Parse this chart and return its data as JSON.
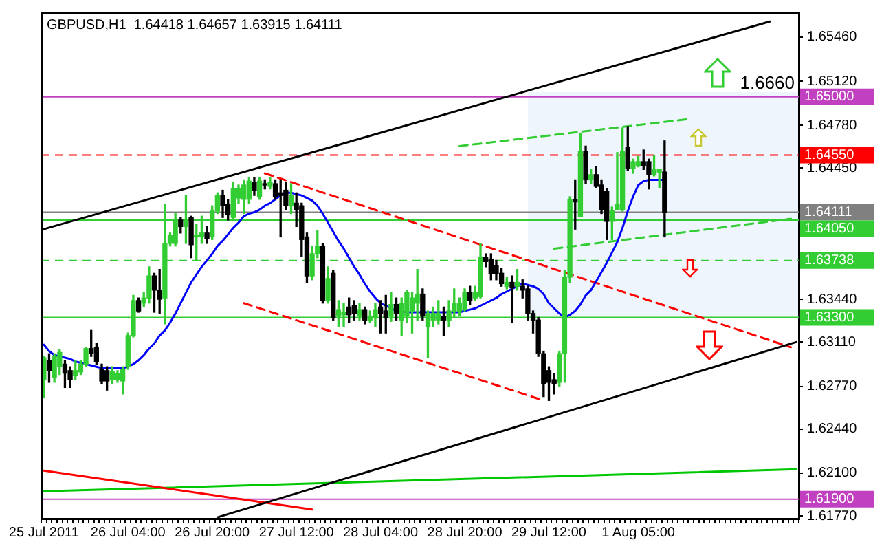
{
  "chart_data": {
    "type": "candlestick",
    "title": "GBPUSD,H1  1.64418 1.64657 1.63915 1.64111",
    "categories": [
      "25 Jul 2011",
      null,
      null,
      null,
      null,
      null,
      null,
      null,
      null,
      null,
      null,
      null,
      null,
      null,
      null,
      null,
      "26 Jul 04:00",
      null,
      null,
      null,
      null,
      null,
      null,
      null,
      null,
      null,
      null,
      null,
      null,
      null,
      null,
      null,
      "26 Jul 20:00",
      null,
      null,
      null,
      null,
      null,
      null,
      null,
      null,
      null,
      null,
      null,
      null,
      null,
      null,
      null,
      "27 Jul 12:00",
      null,
      null,
      null,
      null,
      null,
      null,
      null,
      null,
      null,
      null,
      null,
      null,
      null,
      null,
      null,
      "28 Jul 04:00",
      null,
      null,
      null,
      null,
      null,
      null,
      null,
      null,
      null,
      null,
      null,
      null,
      null,
      null,
      null,
      "28 Jul 20:00",
      null,
      null,
      null,
      null,
      null,
      null,
      null,
      null,
      null,
      null,
      null,
      null,
      null,
      null,
      null,
      "29 Jul 12:00",
      null,
      null,
      null,
      null,
      null,
      null,
      null,
      null,
      null,
      null,
      null,
      null,
      null,
      null,
      null,
      null,
      "1 Aug 05:00",
      null,
      null,
      null,
      null,
      null,
      null,
      null,
      null,
      null,
      null,
      null,
      null,
      null,
      null,
      null,
      null,
      null,
      null,
      null,
      null,
      null,
      null,
      null,
      null,
      null,
      null,
      null,
      null,
      null,
      null
    ],
    "ohlc": [
      [
        1.6282,
        1.63,
        1.6268,
        1.6299
      ],
      [
        1.6297,
        1.6302,
        1.628,
        1.6289
      ],
      [
        1.6284,
        1.6302,
        1.628,
        1.63
      ],
      [
        1.6292,
        1.6305,
        1.6286,
        1.6303
      ],
      [
        1.6294,
        1.6297,
        1.6276,
        1.6287
      ],
      [
        1.6289,
        1.6292,
        1.6276,
        1.6282
      ],
      [
        1.6285,
        1.6297,
        1.6282,
        1.6289
      ],
      [
        1.6288,
        1.6297,
        1.6286,
        1.6294
      ],
      [
        1.6294,
        1.6307,
        1.6292,
        1.6306
      ],
      [
        1.6306,
        1.632,
        1.63,
        1.6302
      ],
      [
        1.6307,
        1.631,
        1.6294,
        1.6296
      ],
      [
        1.629,
        1.6294,
        1.6279,
        1.6281
      ],
      [
        1.6289,
        1.6292,
        1.6274,
        1.6281
      ],
      [
        1.6282,
        1.6292,
        1.6279,
        1.6288
      ],
      [
        1.6282,
        1.6289,
        1.628,
        1.6287
      ],
      [
        1.6281,
        1.6292,
        1.6271,
        1.629
      ],
      [
        1.6292,
        1.6318,
        1.629,
        1.6316
      ],
      [
        1.6316,
        1.6347,
        1.6315,
        1.6343
      ],
      [
        1.6343,
        1.6345,
        1.6334,
        1.6335
      ],
      [
        1.6341,
        1.6349,
        1.6338,
        1.6345
      ],
      [
        1.6345,
        1.6369,
        1.6341,
        1.6362
      ],
      [
        1.6362,
        1.6364,
        1.6334,
        1.6351
      ],
      [
        1.6351,
        1.6367,
        1.6333,
        1.6344
      ],
      [
        1.6345,
        1.6417,
        1.6325,
        1.6387
      ],
      [
        1.6387,
        1.6395,
        1.6385,
        1.6393
      ],
      [
        1.6387,
        1.641,
        1.6385,
        1.6405
      ],
      [
        1.6405,
        1.6407,
        1.6395,
        1.64
      ],
      [
        1.64,
        1.6424,
        1.6387,
        1.6405
      ],
      [
        1.6407,
        1.6408,
        1.6376,
        1.6386
      ],
      [
        1.6392,
        1.6402,
        1.6374,
        1.6393
      ],
      [
        1.6392,
        1.6408,
        1.6387,
        1.6395
      ],
      [
        1.6395,
        1.64,
        1.6387,
        1.6391
      ],
      [
        1.6392,
        1.6416,
        1.639,
        1.6412
      ],
      [
        1.6412,
        1.6426,
        1.641,
        1.6424
      ],
      [
        1.6424,
        1.6428,
        1.6407,
        1.6416
      ],
      [
        1.6417,
        1.6421,
        1.6405,
        1.6409
      ],
      [
        1.6407,
        1.6434,
        1.6405,
        1.6429
      ],
      [
        1.6422,
        1.6432,
        1.6418,
        1.6429
      ],
      [
        1.6421,
        1.6436,
        1.641,
        1.6432
      ],
      [
        1.6421,
        1.6438,
        1.6418,
        1.6435
      ],
      [
        1.6434,
        1.6438,
        1.6424,
        1.6428
      ],
      [
        1.6423,
        1.6438,
        1.6421,
        1.6435
      ],
      [
        1.6433,
        1.6436,
        1.6429,
        1.6432
      ],
      [
        1.6431,
        1.6438,
        1.6429,
        1.6434
      ],
      [
        1.6433,
        1.6436,
        1.6421,
        1.6423
      ],
      [
        1.6426,
        1.6436,
        1.6392,
        1.6424
      ],
      [
        1.6428,
        1.6434,
        1.6413,
        1.6416
      ],
      [
        1.6416,
        1.6433,
        1.641,
        1.6424
      ],
      [
        1.6418,
        1.6426,
        1.64,
        1.6413
      ],
      [
        1.6416,
        1.6418,
        1.6377,
        1.639
      ],
      [
        1.6392,
        1.6395,
        1.6357,
        1.6362
      ],
      [
        1.6362,
        1.6385,
        1.6359,
        1.6379
      ],
      [
        1.6379,
        1.6397,
        1.6376,
        1.6385
      ],
      [
        1.6385,
        1.6387,
        1.6341,
        1.6343
      ],
      [
        1.6343,
        1.6369,
        1.6341,
        1.636
      ],
      [
        1.6364,
        1.6366,
        1.6328,
        1.633
      ],
      [
        1.6331,
        1.6343,
        1.6323,
        1.6336
      ],
      [
        1.6332,
        1.6341,
        1.6323,
        1.6334
      ],
      [
        1.6338,
        1.6345,
        1.6326,
        1.6332
      ],
      [
        1.6339,
        1.6343,
        1.6328,
        1.6333
      ],
      [
        1.6331,
        1.6341,
        1.6328,
        1.6336
      ],
      [
        1.6336,
        1.6338,
        1.6325,
        1.6328
      ],
      [
        1.6328,
        1.6335,
        1.6326,
        1.6331
      ],
      [
        1.633,
        1.6341,
        1.6323,
        1.6336
      ],
      [
        1.6338,
        1.6343,
        1.6318,
        1.6333
      ],
      [
        1.6335,
        1.6347,
        1.6318,
        1.633
      ],
      [
        1.6331,
        1.6349,
        1.6327,
        1.634
      ],
      [
        1.634,
        1.6345,
        1.6328,
        1.6333
      ],
      [
        1.6328,
        1.6345,
        1.6316,
        1.6341
      ],
      [
        1.6331,
        1.6351,
        1.6326,
        1.6349
      ],
      [
        1.6335,
        1.6349,
        1.6318,
        1.6345
      ],
      [
        1.6341,
        1.6367,
        1.6328,
        1.6348
      ],
      [
        1.6348,
        1.6352,
        1.6328,
        1.6331
      ],
      [
        1.6323,
        1.6335,
        1.6299,
        1.6333
      ],
      [
        1.6328,
        1.6338,
        1.6323,
        1.6333
      ],
      [
        1.6328,
        1.6343,
        1.6325,
        1.6333
      ],
      [
        1.6331,
        1.6338,
        1.6316,
        1.6328
      ],
      [
        1.6328,
        1.6343,
        1.6323,
        1.6335
      ],
      [
        1.6335,
        1.6352,
        1.633,
        1.6341
      ],
      [
        1.6335,
        1.6345,
        1.6331,
        1.6341
      ],
      [
        1.6336,
        1.6352,
        1.6335,
        1.6349
      ],
      [
        1.6349,
        1.6354,
        1.634,
        1.6343
      ],
      [
        1.6345,
        1.6354,
        1.6343,
        1.6349
      ],
      [
        1.6346,
        1.6387,
        1.6345,
        1.6376
      ],
      [
        1.6376,
        1.6379,
        1.6369,
        1.6373
      ],
      [
        1.6375,
        1.6379,
        1.6359,
        1.6364
      ],
      [
        1.637,
        1.6374,
        1.6359,
        1.6364
      ],
      [
        1.6364,
        1.6368,
        1.6354,
        1.6356
      ],
      [
        1.6354,
        1.6361,
        1.6352,
        1.6357
      ],
      [
        1.6357,
        1.6362,
        1.6326,
        1.6353
      ],
      [
        1.6354,
        1.6367,
        1.6351,
        1.6357
      ],
      [
        1.6354,
        1.6359,
        1.6345,
        1.6351
      ],
      [
        1.6352,
        1.6354,
        1.6328,
        1.6333
      ],
      [
        1.6333,
        1.6335,
        1.6318,
        1.6328
      ],
      [
        1.6328,
        1.633,
        1.63,
        1.6302
      ],
      [
        1.6302,
        1.6304,
        1.6269,
        1.6279
      ],
      [
        1.6289,
        1.6292,
        1.6266,
        1.628
      ],
      [
        1.6282,
        1.6287,
        1.6271,
        1.6279
      ],
      [
        1.628,
        1.6304,
        1.6277,
        1.6302
      ],
      [
        1.6302,
        1.6366,
        1.628,
        1.6361
      ],
      [
        1.6361,
        1.6423,
        1.6357,
        1.6421
      ],
      [
        1.6421,
        1.6436,
        1.6398,
        1.6419
      ],
      [
        1.6408,
        1.6472,
        1.6408,
        1.6458
      ],
      [
        1.6458,
        1.6462,
        1.6433,
        1.6436
      ],
      [
        1.6436,
        1.6444,
        1.6433,
        1.644
      ],
      [
        1.644,
        1.6446,
        1.643,
        1.6431
      ],
      [
        1.6432,
        1.6436,
        1.641,
        1.6413
      ],
      [
        1.6427,
        1.6429,
        1.639,
        1.6404
      ],
      [
        1.6404,
        1.6415,
        1.639,
        1.6412
      ],
      [
        1.6413,
        1.6457,
        1.6413,
        1.6417
      ],
      [
        1.6413,
        1.6476,
        1.6412,
        1.6458
      ],
      [
        1.6461,
        1.6477,
        1.6443,
        1.6445
      ],
      [
        1.6445,
        1.6452,
        1.6441,
        1.645
      ],
      [
        1.6447,
        1.6454,
        1.6446,
        1.645
      ],
      [
        1.645,
        1.6459,
        1.6444,
        1.6447
      ],
      [
        1.645,
        1.6452,
        1.6429,
        1.644
      ],
      [
        1.644,
        1.6455,
        1.6439,
        1.6444
      ],
      [
        1.6442,
        1.6444,
        1.643,
        1.6444
      ],
      [
        1.6442,
        1.6466,
        1.6392,
        1.6411
      ],
      null,
      null,
      null,
      null,
      null,
      null,
      null,
      null,
      null,
      null,
      null,
      null,
      null,
      null,
      null,
      null,
      null,
      null,
      null,
      null,
      null,
      null,
      null,
      null,
      null
    ],
    "colors": [
      "#32cd32",
      "#000000",
      "#32cd32",
      "#32cd32",
      "#000000",
      "#000000",
      "#32cd32",
      "#32cd32",
      "#32cd32",
      "#000000",
      "#000000",
      "#000000",
      "#000000",
      "#32cd32",
      "#32cd32",
      "#32cd32",
      "#32cd32",
      "#32cd32",
      "#000000",
      "#32cd32",
      "#32cd32",
      "#000000",
      "#000000",
      "#32cd32",
      "#32cd32",
      "#32cd32",
      "#000000",
      "#32cd32",
      "#000000",
      "#32cd32",
      "#32cd32",
      "#000000",
      "#32cd32",
      "#32cd32",
      "#000000",
      "#000000",
      "#32cd32",
      "#32cd32",
      "#32cd32",
      "#32cd32",
      "#000000",
      "#32cd32",
      "#000000",
      "#32cd32",
      "#000000",
      "#000000",
      "#000000",
      "#32cd32",
      "#000000",
      "#000000",
      "#000000",
      "#32cd32",
      "#32cd32",
      "#000000",
      "#32cd32",
      "#000000",
      "#32cd32",
      "#32cd32",
      "#000000",
      "#000000",
      "#32cd32",
      "#000000",
      "#32cd32",
      "#32cd32",
      "#000000",
      "#000000",
      "#32cd32",
      "#000000",
      "#32cd32",
      "#32cd32",
      "#32cd32",
      "#32cd32",
      "#000000",
      "#32cd32",
      "#32cd32",
      "#32cd32",
      "#000000",
      "#32cd32",
      "#32cd32",
      "#32cd32",
      "#32cd32",
      "#000000",
      "#32cd32",
      "#32cd32",
      "#000000",
      "#000000",
      "#000000",
      "#000000",
      "#32cd32",
      "#000000",
      "#32cd32",
      "#000000",
      "#000000",
      "#000000",
      "#000000",
      "#000000",
      "#000000",
      "#000000",
      "#32cd32",
      "#32cd32",
      "#32cd32",
      "#000000",
      "#32cd32",
      "#000000",
      "#32cd32",
      "#000000",
      "#000000",
      "#000000",
      "#32cd32",
      "#32cd32",
      "#32cd32",
      "#000000",
      "#32cd32",
      "#32cd32",
      "#000000",
      "#000000",
      "#32cd32",
      "#32cd32",
      "#000000",
      null,
      null,
      null,
      null,
      null,
      null,
      null,
      null,
      null,
      null,
      null,
      null,
      null,
      null,
      null,
      null,
      null,
      null,
      null,
      null,
      null,
      null,
      null,
      null,
      null
    ],
    "series": [
      {
        "type": "line",
        "color": "#0000ff",
        "values": [
          1.6309,
          1.6304,
          1.6301,
          1.63,
          1.6299,
          1.6298,
          1.6296,
          1.6295,
          1.6294,
          1.6293,
          1.6292,
          1.6291,
          1.6291,
          1.6291,
          1.6291,
          1.6291,
          1.6292,
          1.6294,
          1.6297,
          1.6301,
          1.6306,
          1.631,
          1.6316,
          1.632,
          1.6326,
          1.6333,
          1.6341,
          1.6349,
          1.6357,
          1.6363,
          1.6369,
          1.6374,
          1.6379,
          1.6385,
          1.6389,
          1.6394,
          1.6399,
          1.6403,
          1.6408,
          1.641,
          1.6411,
          1.6413,
          1.6416,
          1.6418,
          1.6421,
          1.6424,
          1.6426,
          1.6426,
          1.6425,
          1.6424,
          1.6422,
          1.642,
          1.6416,
          1.641,
          1.6403,
          1.6396,
          1.6389,
          1.6383,
          1.6376,
          1.6369,
          1.6363,
          1.6356,
          1.635,
          1.6345,
          1.6341,
          1.6339,
          1.6337,
          1.6335,
          null,
          1.6334,
          1.6334,
          1.6334,
          1.6334,
          1.6334,
          1.6334,
          1.6334,
          1.6334,
          1.6334,
          1.6334,
          1.6334,
          1.6335,
          1.6336,
          1.6337,
          1.6339,
          1.6341,
          1.6343,
          1.6345,
          1.6348,
          1.635,
          1.6352,
          1.6354,
          1.6356,
          1.6355,
          1.6354,
          1.6352,
          1.6348,
          1.6341,
          1.6337,
          1.6333,
          1.633,
          1.6332,
          1.6335,
          1.634,
          1.6347,
          1.6351,
          1.6358,
          1.6365,
          1.6372,
          1.638,
          1.6388,
          1.6399,
          1.6412,
          1.6423,
          1.6432,
          1.6435,
          1.6436,
          1.6436,
          1.6436,
          1.6436,
          null,
          null,
          null,
          null,
          null,
          null,
          null,
          null,
          null,
          null,
          null,
          null,
          null,
          null,
          null,
          null,
          null,
          null,
          null,
          null,
          null,
          null,
          null,
          null,
          null
        ]
      },
      {
        "type": "line",
        "color": "#000000",
        "values": [
          1.6398,
          null,
          null,
          null,
          null,
          null,
          null,
          null,
          null,
          null,
          null,
          null,
          null,
          null,
          null,
          null,
          null,
          null,
          null,
          null,
          null,
          null,
          null,
          null,
          null,
          null,
          null,
          null,
          null,
          null,
          null,
          null,
          null,
          null,
          null,
          null,
          null,
          null,
          null,
          null,
          null,
          null,
          null,
          null,
          null,
          null,
          null,
          null,
          null,
          null,
          null,
          null,
          null,
          null,
          null,
          null,
          null,
          null,
          null,
          null,
          null,
          null,
          null,
          null,
          null,
          null,
          null,
          null,
          null,
          null,
          null,
          null,
          null,
          null,
          null,
          null,
          null,
          null,
          null,
          null,
          null,
          null,
          null,
          null,
          null,
          null,
          null,
          null,
          null,
          null,
          null,
          null,
          null,
          null,
          null,
          null,
          null,
          null,
          null,
          null,
          null,
          null,
          null,
          null,
          null,
          null,
          null,
          null,
          null,
          null,
          null,
          null,
          null,
          null,
          null,
          null,
          null,
          null,
          null,
          null,
          null,
          null,
          null,
          null,
          null,
          null,
          null,
          null,
          null,
          null,
          null,
          null,
          null,
          null,
          null,
          null,
          null,
          null,
          1.6558,
          null,
          null,
          null,
          null,
          null
        ]
      },
      {
        "type": "line",
        "color": "#000000",
        "values": [
          null,
          null,
          null,
          null,
          null,
          null,
          null,
          null,
          null,
          null,
          null,
          null,
          null,
          null,
          null,
          null,
          null,
          null,
          null,
          null,
          null,
          null,
          null,
          null,
          null,
          null,
          null,
          null,
          null,
          null,
          null,
          null,
          null,
          1.6176,
          null,
          null,
          null,
          null,
          null,
          null,
          null,
          null,
          null,
          null,
          null,
          null,
          null,
          null,
          null,
          null,
          null,
          null,
          null,
          null,
          null,
          null,
          null,
          null,
          null,
          null,
          null,
          null,
          null,
          null,
          null,
          null,
          null,
          null,
          null,
          null,
          null,
          null,
          null,
          null,
          null,
          null,
          null,
          null,
          null,
          null,
          null,
          null,
          null,
          null,
          null,
          null,
          null,
          null,
          null,
          null,
          null,
          null,
          null,
          null,
          null,
          null,
          null,
          null,
          null,
          null,
          null,
          null,
          null,
          null,
          null,
          null,
          null,
          null,
          null,
          null,
          null,
          null,
          null,
          null,
          null,
          null,
          null,
          null,
          null,
          null,
          null,
          null,
          null,
          null,
          null,
          null,
          null,
          null,
          null,
          null,
          null,
          null,
          null,
          null,
          null,
          null,
          null,
          null,
          null,
          null,
          null,
          null,
          null,
          1.6311
        ]
      },
      {
        "type": "line",
        "color": "#ff0000",
        "line_style": "dashed",
        "values": [
          null,
          null,
          null,
          null,
          null,
          null,
          null,
          null,
          null,
          null,
          null,
          null,
          null,
          null,
          null,
          null,
          null,
          null,
          null,
          null,
          null,
          null,
          null,
          null,
          null,
          null,
          null,
          null,
          null,
          null,
          null,
          null,
          null,
          null,
          null,
          null,
          null,
          null,
          null,
          null,
          null,
          null,
          1.6441,
          null,
          null,
          null,
          null,
          null,
          null,
          null,
          null,
          null,
          null,
          null,
          null,
          null,
          null,
          null,
          null,
          null,
          null,
          null,
          null,
          null,
          null,
          null,
          null,
          null,
          null,
          null,
          null,
          null,
          null,
          null,
          null,
          null,
          null,
          null,
          null,
          null,
          null,
          null,
          null,
          null,
          null,
          null,
          null,
          null,
          null,
          null,
          null,
          null,
          null,
          null,
          null,
          null,
          null,
          null,
          null,
          null,
          null,
          null,
          null,
          null,
          null,
          null,
          null,
          null,
          null,
          null,
          null,
          null,
          null,
          null,
          null,
          null,
          null,
          null,
          null,
          null,
          null,
          null,
          null,
          null,
          null,
          null,
          null,
          null,
          null,
          null,
          null,
          null,
          null,
          null,
          null,
          null,
          null,
          null,
          null,
          null,
          null,
          null,
          1.6307,
          null
        ]
      },
      {
        "type": "line",
        "color": "#ff0000",
        "line_style": "dashed",
        "values": [
          null,
          null,
          null,
          null,
          null,
          null,
          null,
          null,
          null,
          null,
          null,
          null,
          null,
          null,
          null,
          null,
          null,
          null,
          null,
          null,
          null,
          null,
          null,
          null,
          null,
          null,
          null,
          null,
          null,
          null,
          null,
          null,
          null,
          null,
          null,
          null,
          null,
          null,
          1.6341,
          null,
          null,
          null,
          null,
          null,
          null,
          null,
          null,
          null,
          null,
          null,
          null,
          null,
          null,
          null,
          null,
          null,
          null,
          null,
          null,
          null,
          null,
          null,
          null,
          null,
          null,
          null,
          null,
          null,
          null,
          null,
          null,
          null,
          null,
          null,
          null,
          null,
          null,
          null,
          null,
          null,
          null,
          null,
          null,
          null,
          null,
          null,
          null,
          null,
          null,
          null,
          null,
          null,
          null,
          null,
          null,
          1.6266,
          null,
          null,
          null,
          null,
          null,
          null,
          null,
          null,
          null,
          null,
          null,
          null,
          null,
          null,
          null,
          null,
          null,
          null,
          null,
          null,
          null,
          null,
          null,
          null,
          null,
          null,
          null,
          null,
          null,
          null,
          null,
          null,
          null,
          null,
          null,
          null,
          null,
          null,
          null,
          null,
          null,
          null,
          null,
          null,
          null,
          null,
          null,
          null
        ]
      },
      {
        "type": "line",
        "color": "#32cd32",
        "line_style": "dashed",
        "values": [
          null,
          null,
          null,
          null,
          null,
          null,
          null,
          null,
          null,
          null,
          null,
          null,
          null,
          null,
          null,
          null,
          null,
          null,
          null,
          null,
          null,
          null,
          null,
          null,
          null,
          null,
          null,
          null,
          null,
          null,
          null,
          null,
          null,
          null,
          null,
          null,
          null,
          null,
          null,
          null,
          null,
          null,
          null,
          null,
          null,
          null,
          null,
          null,
          null,
          null,
          null,
          null,
          null,
          null,
          null,
          null,
          null,
          null,
          null,
          null,
          null,
          null,
          null,
          null,
          null,
          null,
          null,
          null,
          null,
          null,
          null,
          null,
          null,
          null,
          null,
          null,
          null,
          null,
          null,
          1.6462,
          null,
          null,
          null,
          null,
          null,
          null,
          null,
          null,
          null,
          null,
          null,
          null,
          null,
          null,
          null,
          null,
          null,
          null,
          null,
          null,
          null,
          null,
          null,
          null,
          null,
          null,
          null,
          null,
          null,
          null,
          null,
          null,
          null,
          null,
          null,
          null,
          null,
          null,
          null,
          null,
          null,
          null,
          null,
          1.6483,
          null,
          null,
          null,
          null,
          null,
          null,
          null,
          null,
          null,
          null,
          null,
          null,
          null,
          null,
          null,
          null,
          null,
          null,
          null,
          null
        ]
      },
      {
        "type": "line",
        "color": "#32cd32",
        "line_style": "dashed",
        "values": [
          null,
          null,
          null,
          null,
          null,
          null,
          null,
          null,
          null,
          null,
          null,
          null,
          null,
          null,
          null,
          null,
          null,
          null,
          null,
          null,
          null,
          null,
          null,
          null,
          null,
          null,
          null,
          null,
          null,
          null,
          null,
          null,
          null,
          null,
          null,
          null,
          null,
          null,
          null,
          null,
          null,
          null,
          null,
          null,
          null,
          null,
          null,
          null,
          null,
          null,
          null,
          null,
          null,
          null,
          null,
          null,
          null,
          null,
          null,
          null,
          null,
          null,
          null,
          null,
          null,
          null,
          null,
          null,
          null,
          null,
          null,
          null,
          null,
          null,
          null,
          null,
          null,
          null,
          null,
          null,
          null,
          null,
          null,
          null,
          null,
          null,
          null,
          null,
          null,
          null,
          null,
          null,
          null,
          null,
          null,
          null,
          null,
          1.6383,
          null,
          null,
          null,
          null,
          null,
          null,
          null,
          null,
          null,
          null,
          null,
          null,
          null,
          null,
          null,
          null,
          null,
          null,
          null,
          null,
          null,
          null,
          null,
          null,
          null,
          null,
          null,
          null,
          null,
          null,
          null,
          null,
          null,
          null,
          null,
          null,
          null,
          null,
          null,
          null,
          null,
          null,
          null,
          null,
          1.6406,
          null
        ]
      },
      {
        "type": "line",
        "color": "#ff0000",
        "values": [
          1.6212,
          null,
          null,
          null,
          null,
          null,
          null,
          null,
          null,
          null,
          null,
          null,
          null,
          null,
          null,
          null,
          null,
          null,
          null,
          null,
          null,
          null,
          null,
          null,
          null,
          null,
          null,
          null,
          null,
          null,
          null,
          null,
          null,
          null,
          null,
          null,
          null,
          null,
          null,
          null,
          null,
          null,
          null,
          null,
          null,
          null,
          null,
          null,
          null,
          null,
          null,
          1.6182,
          null,
          null,
          null,
          null,
          null,
          null,
          null,
          null,
          null,
          null,
          null,
          null,
          null,
          null,
          null,
          null,
          null,
          null,
          null,
          null,
          null,
          null,
          null,
          null,
          null,
          null,
          null,
          null,
          null,
          null,
          null,
          null,
          null,
          null,
          null,
          null,
          null,
          null,
          null,
          null,
          null,
          null,
          null,
          null,
          null,
          null,
          null,
          null,
          null,
          null,
          null,
          null,
          null,
          null,
          null,
          null,
          null,
          null,
          null,
          null,
          null,
          null,
          null,
          null,
          null,
          null,
          null,
          null,
          null,
          null,
          null,
          null,
          null,
          null,
          null,
          null,
          null,
          null,
          null,
          null,
          null,
          null,
          null,
          null,
          null,
          null,
          null,
          null,
          null,
          null,
          null,
          null
        ]
      },
      {
        "type": "line",
        "color": "#00c800",
        "values": [
          1.6196,
          null,
          null,
          null,
          null,
          null,
          null,
          null,
          null,
          null,
          null,
          null,
          null,
          null,
          null,
          null,
          null,
          null,
          null,
          null,
          null,
          null,
          null,
          null,
          null,
          null,
          null,
          null,
          null,
          null,
          null,
          null,
          null,
          null,
          null,
          null,
          null,
          null,
          null,
          null,
          null,
          null,
          null,
          null,
          null,
          null,
          null,
          null,
          null,
          null,
          null,
          null,
          null,
          null,
          null,
          null,
          null,
          null,
          null,
          null,
          null,
          null,
          null,
          null,
          null,
          null,
          null,
          null,
          null,
          null,
          null,
          null,
          null,
          null,
          null,
          null,
          null,
          null,
          null,
          null,
          null,
          null,
          null,
          null,
          null,
          null,
          null,
          null,
          null,
          null,
          null,
          null,
          null,
          null,
          null,
          null,
          null,
          null,
          null,
          null,
          null,
          null,
          null,
          null,
          null,
          null,
          null,
          null,
          null,
          null,
          null,
          null,
          null,
          null,
          null,
          null,
          null,
          null,
          null,
          null,
          null,
          null,
          null,
          null,
          null,
          null,
          null,
          null,
          null,
          null,
          null,
          null,
          null,
          null,
          null,
          null,
          null,
          null,
          null,
          null,
          null,
          null,
          null,
          1.6213
        ]
      }
    ],
    "ylim": [
      1.6175,
      1.6565
    ],
    "yticks": [
      {
        "value": 1.6546,
        "label": "1.65460"
      },
      {
        "value": 1.6512,
        "label": "1.65120"
      },
      {
        "value": 1.6478,
        "label": "1.64780"
      },
      {
        "value": 1.6445,
        "label": "1.64450"
      },
      {
        "value": 1.6344,
        "label": "1.63440"
      },
      {
        "value": 1.6311,
        "label": "1.63110"
      },
      {
        "value": 1.6277,
        "label": "1.62770"
      },
      {
        "value": 1.6244,
        "label": "1.62440"
      },
      {
        "value": 1.621,
        "label": "1.62100"
      },
      {
        "value": 1.6177,
        "label": "1.61770"
      }
    ],
    "ref_lines": [
      {
        "axis": "y",
        "value": 1.65,
        "label": "1.65000",
        "color": "#c040c0"
      },
      {
        "axis": "y",
        "value": 1.6455,
        "label": "1.64550",
        "color": "#ff0000",
        "line_style": "dashed"
      },
      {
        "axis": "y",
        "value": 1.64111,
        "label": "1.64111",
        "color": "#808080"
      },
      {
        "axis": "y",
        "value": 1.6405,
        "label": "1.64050",
        "color": "#32cd32"
      },
      {
        "axis": "y",
        "value": 1.63738,
        "label": "1.63738",
        "color": "#32cd32",
        "line_style": "dashed"
      },
      {
        "axis": "y",
        "value": 1.633,
        "label": "1.63300",
        "color": "#32cd32"
      },
      {
        "axis": "y",
        "value": 1.619,
        "label": "1.61900",
        "color": "#c040c0"
      }
    ],
    "annotations": [
      "1.6660"
    ],
    "legend": false,
    "grid": false
  }
}
